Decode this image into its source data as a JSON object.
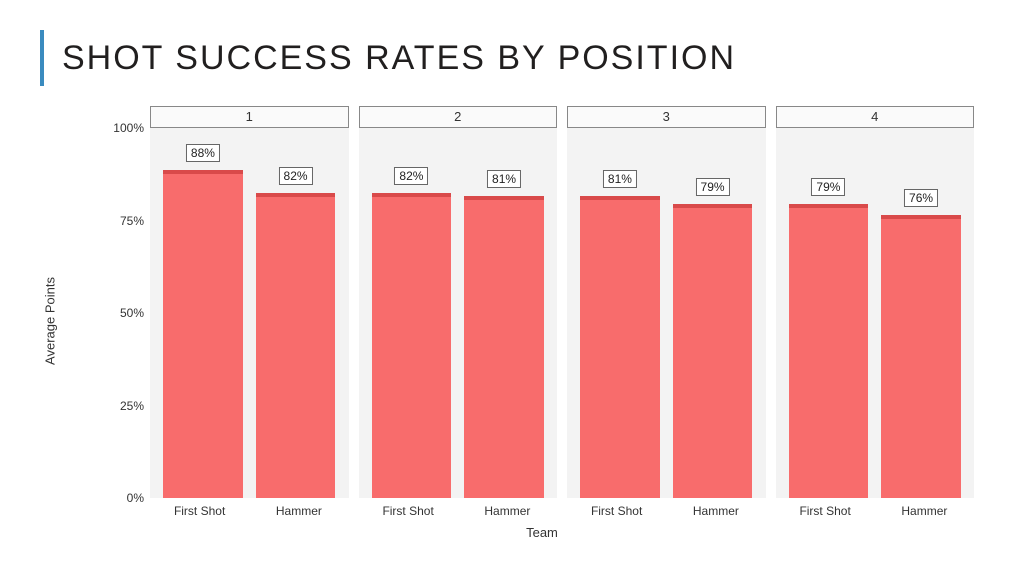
{
  "title": "SHOT SUCCESS RATES BY POSITION",
  "accent_color": "#3a8bbf",
  "chart": {
    "type": "faceted-bar",
    "ylabel": "Average Points",
    "xlabel": "Team",
    "ylim": [
      0,
      100
    ],
    "yticks": [
      0,
      25,
      50,
      75,
      100
    ],
    "ytick_labels": [
      "0%",
      "25%",
      "50%",
      "75%",
      "100%"
    ],
    "panel_bg": "#f3f3f3",
    "panel_header_bg": "#fafafa",
    "panel_border": "#888888",
    "bar_color": "#f86c6c",
    "err_color": "#d94a4a",
    "label_fontsize": 12,
    "axis_fontsize": 13,
    "panels": [
      {
        "header": "1",
        "bars": [
          {
            "category": "First Shot",
            "value": 88,
            "label": "88%"
          },
          {
            "category": "Hammer",
            "value": 82,
            "label": "82%"
          }
        ]
      },
      {
        "header": "2",
        "bars": [
          {
            "category": "First Shot",
            "value": 82,
            "label": "82%"
          },
          {
            "category": "Hammer",
            "value": 81,
            "label": "81%"
          }
        ]
      },
      {
        "header": "3",
        "bars": [
          {
            "category": "First Shot",
            "value": 81,
            "label": "81%"
          },
          {
            "category": "Hammer",
            "value": 79,
            "label": "79%"
          }
        ]
      },
      {
        "header": "4",
        "bars": [
          {
            "category": "First Shot",
            "value": 79,
            "label": "79%"
          },
          {
            "category": "Hammer",
            "value": 76,
            "label": "76%"
          }
        ]
      }
    ]
  }
}
